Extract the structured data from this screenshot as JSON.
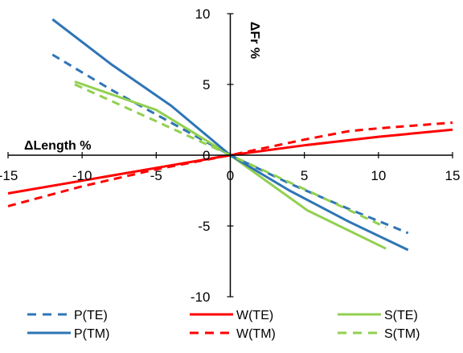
{
  "chart_data": {
    "type": "line",
    "title": "",
    "xlabel": "ΔLength %",
    "ylabel": "ΔFr %",
    "xlim": [
      -15,
      15
    ],
    "ylim": [
      -10,
      10
    ],
    "x_ticks": [
      -15,
      -10,
      -5,
      0,
      5,
      10,
      15
    ],
    "y_ticks": [
      -10,
      -5,
      0,
      5,
      10
    ],
    "x_tick_labels": [
      "-15",
      "-10",
      "-5",
      "0",
      "5",
      "10",
      "15"
    ],
    "y_tick_labels": [
      "-10",
      "-5",
      "0",
      "5",
      "10"
    ],
    "grid": false,
    "legend_position": "bottom",
    "series": [
      {
        "name": "P(TE)",
        "color": "#2e75b6",
        "dash": "dashed",
        "x": [
          -12,
          -8,
          -4,
          0,
          4,
          8,
          12
        ],
        "y": [
          7.1,
          4.6,
          2.3,
          0,
          -2.0,
          -3.8,
          -5.5
        ]
      },
      {
        "name": "W(TE)",
        "color": "#ff0000",
        "dash": "solid",
        "x": [
          -15,
          -10,
          -5,
          0,
          5,
          10,
          15
        ],
        "y": [
          -2.7,
          -1.8,
          -0.9,
          0,
          0.7,
          1.3,
          1.8
        ]
      },
      {
        "name": "S(TE)",
        "color": "#92d050",
        "dash": "solid",
        "x": [
          -10.5,
          -5,
          -2.5,
          0,
          5.2,
          10.5
        ],
        "y": [
          5.2,
          3.2,
          1.6,
          0,
          -3.9,
          -6.6
        ]
      },
      {
        "name": "P(TM)",
        "color": "#2e75b6",
        "dash": "solid",
        "x": [
          -12,
          -8,
          -4,
          0,
          4,
          8,
          12
        ],
        "y": [
          9.6,
          6.4,
          3.5,
          0,
          -2.5,
          -4.7,
          -6.7
        ]
      },
      {
        "name": "W(TM)",
        "color": "#ff0000",
        "dash": "dashed",
        "x": [
          -15,
          -10,
          -5,
          0,
          5,
          8,
          10,
          15
        ],
        "y": [
          -3.6,
          -2.2,
          -1.0,
          0,
          1.1,
          1.7,
          1.9,
          2.3
        ]
      },
      {
        "name": "S(TM)",
        "color": "#92d050",
        "dash": "dashed",
        "x": [
          -10.5,
          -5,
          0,
          5,
          10.5
        ],
        "y": [
          5.0,
          2.4,
          0,
          -2.4,
          -5.1
        ]
      }
    ]
  }
}
